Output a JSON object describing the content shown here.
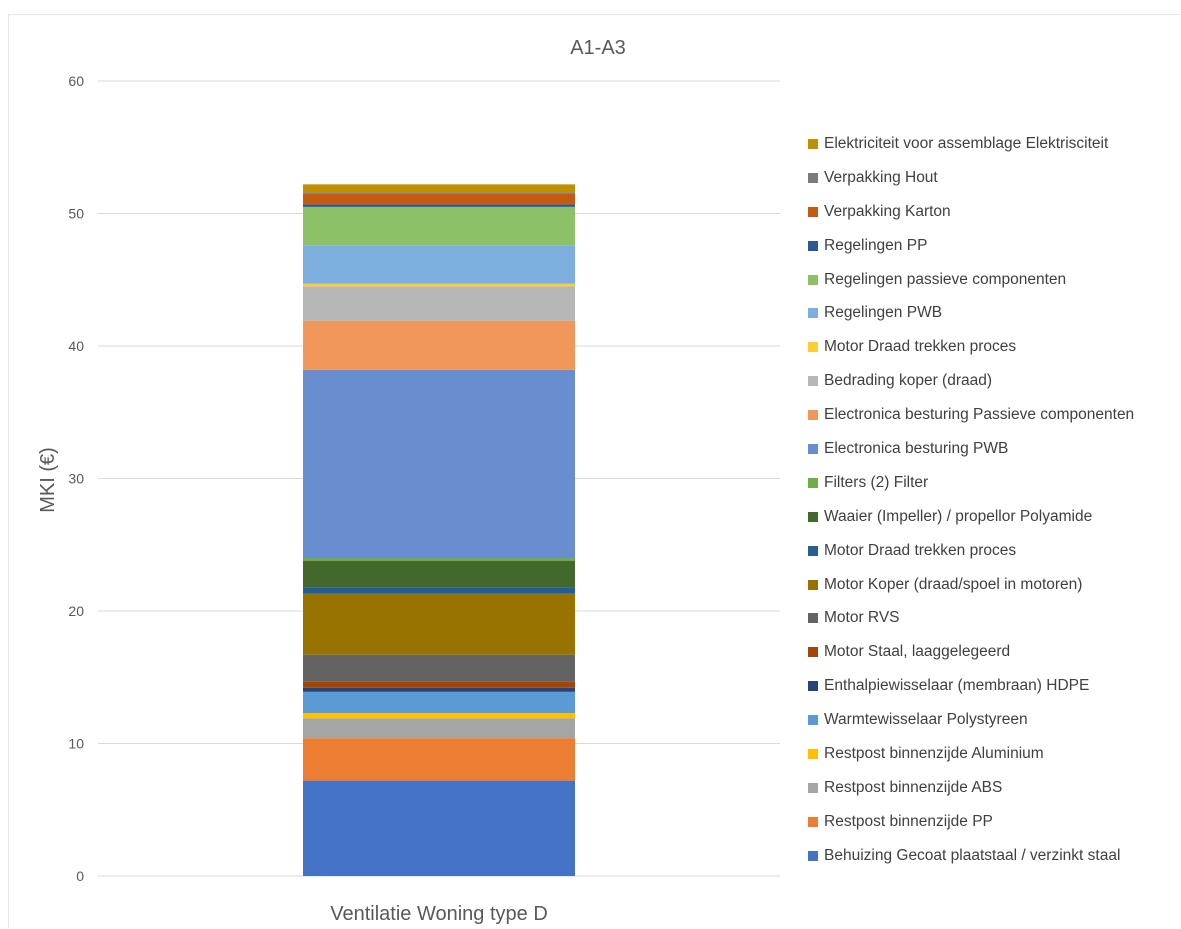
{
  "chart_data": {
    "type": "bar",
    "stacked": true,
    "title": "A1-A3",
    "ylabel": "MKI (€)",
    "xlabel": "",
    "categories": [
      "Ventilatie Woning type D"
    ],
    "ylim": [
      0,
      60
    ],
    "yticks": [
      "0",
      "10",
      "20",
      "30",
      "40",
      "50",
      "60"
    ],
    "grid": true,
    "legend_position": "right",
    "series": [
      {
        "name": "Behuizing Gecoat plaatstaal / verzinkt staal",
        "color": "#4472c4",
        "values": [
          7.2
        ]
      },
      {
        "name": "Restpost binnenzijde PP",
        "color": "#ed7d31",
        "values": [
          3.2
        ]
      },
      {
        "name": "Restpost binnenzijde ABS",
        "color": "#a5a5a5",
        "values": [
          1.5
        ]
      },
      {
        "name": "Restpost binnenzijde Aluminium",
        "color": "#ffc000",
        "values": [
          0.4
        ]
      },
      {
        "name": "Warmtewisselaar Polystyreen",
        "color": "#5b9bd5",
        "values": [
          1.6
        ]
      },
      {
        "name": "Enthalpiewisselaar (membraan) HDPE",
        "color": "#264478",
        "values": [
          0.3
        ]
      },
      {
        "name": "Motor Staal, laaggelegeerd",
        "color": "#9e480e",
        "values": [
          0.5
        ]
      },
      {
        "name": "Motor RVS",
        "color": "#636363",
        "values": [
          2.0
        ]
      },
      {
        "name": "Motor Koper (draad/spoel in motoren)",
        "color": "#997300",
        "values": [
          4.6
        ]
      },
      {
        "name": "Motor Draad trekken proces",
        "color": "#255e91",
        "values": [
          0.5
        ]
      },
      {
        "name": "Waaier (Impeller) / propellor Polyamide",
        "color": "#43682b",
        "values": [
          2.0
        ]
      },
      {
        "name": "Filters (2) Filter",
        "color": "#70ad47",
        "values": [
          0.2
        ]
      },
      {
        "name": "Electronica besturing PWB",
        "color": "#698ed0",
        "values": [
          14.2
        ]
      },
      {
        "name": "Electronica besturing Passieve componenten",
        "color": "#f1975a",
        "values": [
          3.7
        ]
      },
      {
        "name": "Bedrading koper (draad)",
        "color": "#b7b7b7",
        "values": [
          2.6
        ]
      },
      {
        "name": "Motor Draad trekken proces",
        "color": "#ffcd33",
        "values": [
          0.2
        ]
      },
      {
        "name": "Regelingen PWB",
        "color": "#7cafdd",
        "values": [
          2.9
        ]
      },
      {
        "name": "Regelingen passieve componenten",
        "color": "#8cc168",
        "values": [
          2.9
        ]
      },
      {
        "name": "Regelingen PP",
        "color": "#2f5597",
        "values": [
          0.2
        ]
      },
      {
        "name": "Verpakking Karton",
        "color": "#c55a11",
        "values": [
          0.8
        ]
      },
      {
        "name": "Verpakking Hout",
        "color": "#7b7b7b",
        "values": [
          0.1
        ]
      },
      {
        "name": "Elektriciteit voor assemblage Elektrisciteit",
        "color": "#bf9000",
        "values": [
          0.6
        ]
      }
    ]
  }
}
